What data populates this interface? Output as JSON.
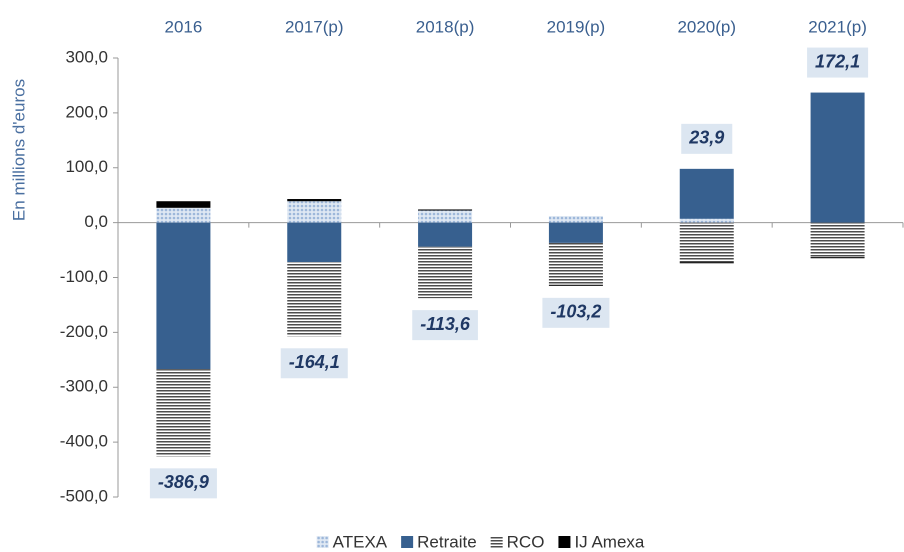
{
  "chart_data": {
    "type": "stacked_bar",
    "y_axis_label": "En millions d'euros",
    "categories": [
      "2016",
      "2017(p)",
      "2018(p)",
      "2019(p)",
      "2020(p)",
      "2021(p)"
    ],
    "series": [
      {
        "name": "ATEXA",
        "color": "#9db7da",
        "pattern": "dots",
        "values": [
          27,
          39,
          22,
          12,
          7,
          0
        ]
      },
      {
        "name": "Retraite",
        "color": "#37608f",
        "pattern": "solid",
        "values": [
          -267,
          -72,
          -44,
          -37,
          91,
          237
        ]
      },
      {
        "name": "RCO",
        "color": "#4d4d4d",
        "pattern": "stripes",
        "values": [
          -158.9,
          -135.1,
          -93.6,
          -76.2,
          -72.1,
          -62.9
        ]
      },
      {
        "name": "IJ Amexa",
        "color": "#000000",
        "pattern": "solid",
        "values": [
          12,
          4,
          2,
          -2,
          -2,
          -2
        ]
      }
    ],
    "totals": [
      -386.9,
      -164.1,
      -113.6,
      -103.2,
      23.9,
      172.1
    ],
    "value_labels": [
      "-386,9",
      "-164,1",
      "-113,6",
      "-103,2",
      "23,9",
      "172,1"
    ],
    "ylim": [
      -500,
      300
    ],
    "yticks": [
      {
        "value": 300,
        "label": "300,0"
      },
      {
        "value": 200,
        "label": "200,0"
      },
      {
        "value": 100,
        "label": "100,0"
      },
      {
        "value": 0,
        "label": "0,0"
      },
      {
        "value": -100,
        "label": "-100,0"
      },
      {
        "value": -200,
        "label": "-200,0"
      },
      {
        "value": -300,
        "label": "-300,0"
      },
      {
        "value": -400,
        "label": "-400,0"
      },
      {
        "value": -500,
        "label": "-500,0"
      }
    ],
    "legend": "bottom"
  }
}
